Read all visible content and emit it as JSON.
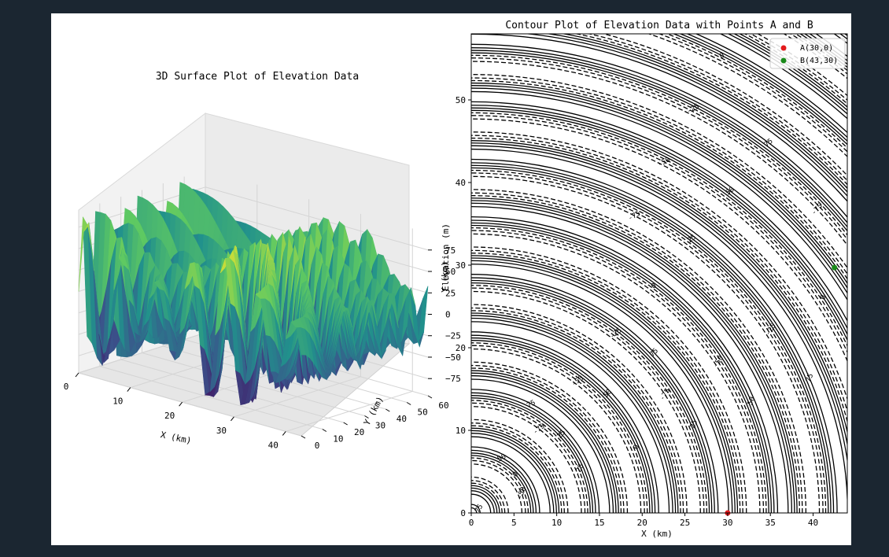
{
  "chart_data": [
    {
      "type": "surface3d",
      "title": "3D Surface Plot of Elevation Data",
      "xlabel": "X (km)",
      "ylabel": "Y (km)",
      "zlabel": "Elevation (m)",
      "xlim": [
        0,
        43
      ],
      "ylim": [
        0,
        60
      ],
      "zlim": [
        -95,
        95
      ],
      "x_ticks": [
        "0",
        "10",
        "20",
        "30",
        "40"
      ],
      "y_ticks": [
        "0",
        "10",
        "20",
        "30",
        "40",
        "50",
        "60"
      ],
      "z_ticks": [
        "75",
        "50",
        "25",
        "0",
        "−25",
        "−50",
        "−75"
      ],
      "colormap": "viridis",
      "grid": true
    },
    {
      "type": "contour",
      "title": "Contour Plot of Elevation Data with Points A and B",
      "xlabel": "X (km)",
      "ylabel": "Y (km)",
      "xlim": [
        0,
        44
      ],
      "ylim": [
        0,
        58
      ],
      "x_ticks": [
        "0",
        "5",
        "10",
        "15",
        "20",
        "25",
        "30",
        "35",
        "40"
      ],
      "y_ticks": [
        "0",
        "10",
        "20",
        "30",
        "40",
        "50"
      ],
      "contour_labels": [
        "-75",
        "-50",
        "-25",
        "0",
        "25",
        "50",
        "75"
      ],
      "points": [
        {
          "name": "A(30,0)",
          "x": 30,
          "y": 0,
          "color": "#e31a1c"
        },
        {
          "name": "B(43,30)",
          "x": 42.5,
          "y": 29.7,
          "color": "#1a8a1a"
        }
      ],
      "legend": "top-right"
    }
  ]
}
